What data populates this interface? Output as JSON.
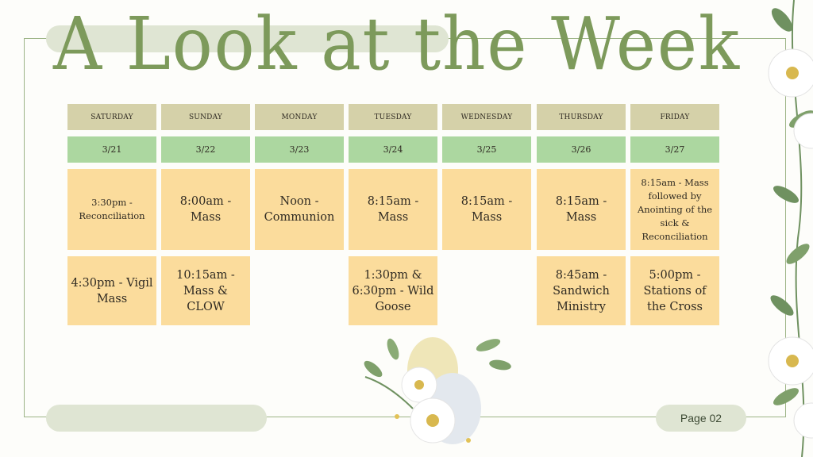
{
  "title": "A Look at the Week",
  "days": [
    {
      "name": "SATURDAY",
      "date": "3/21",
      "events": [
        "3:30pm - Reconciliation",
        "4:30pm - Vigil Mass"
      ]
    },
    {
      "name": "SUNDAY",
      "date": "3/22",
      "events": [
        "8:00am - Mass",
        "10:15am - Mass & CLOW"
      ]
    },
    {
      "name": "MONDAY",
      "date": "3/23",
      "events": [
        "Noon - Communion",
        ""
      ]
    },
    {
      "name": "TUESDAY",
      "date": "3/24",
      "events": [
        "8:15am - Mass",
        "1:30pm & 6:30pm - Wild Goose"
      ]
    },
    {
      "name": "WEDNESDAY",
      "date": "3/25",
      "events": [
        "8:15am - Mass",
        ""
      ]
    },
    {
      "name": "THURSDAY",
      "date": "3/26",
      "events": [
        "8:15am - Mass",
        "8:45am - Sandwich Ministry"
      ]
    },
    {
      "name": "FRIDAY",
      "date": "3/27",
      "events": [
        "8:15am - Mass followed by Anointing of the sick & Reconciliation",
        "5:00pm - Stations of the Cross"
      ]
    }
  ],
  "page_label": "Page 02",
  "colors": {
    "title": "#7d9a5b",
    "day_header": "#d5d1a9",
    "date_header": "#acd7a0",
    "event": "#fbdc9c",
    "frame": "#9db486"
  }
}
